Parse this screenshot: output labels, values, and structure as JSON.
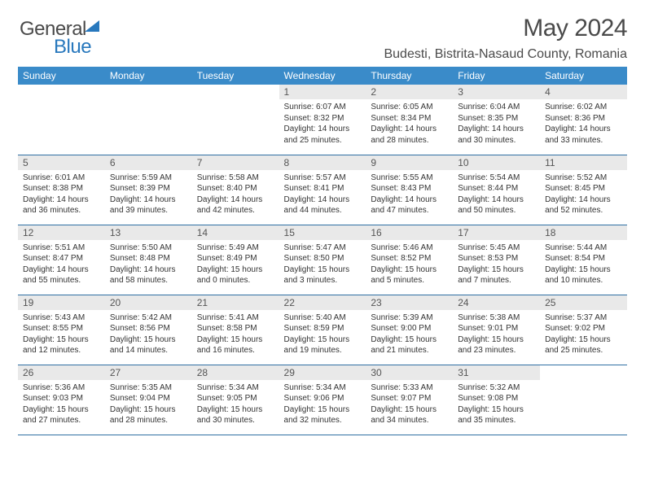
{
  "brand": {
    "part1": "General",
    "part2": "Blue"
  },
  "title": "May 2024",
  "location": "Budesti, Bistrita-Nasaud County, Romania",
  "header_color": "#3a8bc9",
  "daynum_bg": "#e9e9e9",
  "border_color": "#2f6fa3",
  "weekdays": [
    "Sunday",
    "Monday",
    "Tuesday",
    "Wednesday",
    "Thursday",
    "Friday",
    "Saturday"
  ],
  "weeks": [
    [
      null,
      null,
      null,
      {
        "n": "1",
        "sr": "6:07 AM",
        "ss": "8:32 PM",
        "dl": "14 hours and 25 minutes."
      },
      {
        "n": "2",
        "sr": "6:05 AM",
        "ss": "8:34 PM",
        "dl": "14 hours and 28 minutes."
      },
      {
        "n": "3",
        "sr": "6:04 AM",
        "ss": "8:35 PM",
        "dl": "14 hours and 30 minutes."
      },
      {
        "n": "4",
        "sr": "6:02 AM",
        "ss": "8:36 PM",
        "dl": "14 hours and 33 minutes."
      }
    ],
    [
      {
        "n": "5",
        "sr": "6:01 AM",
        "ss": "8:38 PM",
        "dl": "14 hours and 36 minutes."
      },
      {
        "n": "6",
        "sr": "5:59 AM",
        "ss": "8:39 PM",
        "dl": "14 hours and 39 minutes."
      },
      {
        "n": "7",
        "sr": "5:58 AM",
        "ss": "8:40 PM",
        "dl": "14 hours and 42 minutes."
      },
      {
        "n": "8",
        "sr": "5:57 AM",
        "ss": "8:41 PM",
        "dl": "14 hours and 44 minutes."
      },
      {
        "n": "9",
        "sr": "5:55 AM",
        "ss": "8:43 PM",
        "dl": "14 hours and 47 minutes."
      },
      {
        "n": "10",
        "sr": "5:54 AM",
        "ss": "8:44 PM",
        "dl": "14 hours and 50 minutes."
      },
      {
        "n": "11",
        "sr": "5:52 AM",
        "ss": "8:45 PM",
        "dl": "14 hours and 52 minutes."
      }
    ],
    [
      {
        "n": "12",
        "sr": "5:51 AM",
        "ss": "8:47 PM",
        "dl": "14 hours and 55 minutes."
      },
      {
        "n": "13",
        "sr": "5:50 AM",
        "ss": "8:48 PM",
        "dl": "14 hours and 58 minutes."
      },
      {
        "n": "14",
        "sr": "5:49 AM",
        "ss": "8:49 PM",
        "dl": "15 hours and 0 minutes."
      },
      {
        "n": "15",
        "sr": "5:47 AM",
        "ss": "8:50 PM",
        "dl": "15 hours and 3 minutes."
      },
      {
        "n": "16",
        "sr": "5:46 AM",
        "ss": "8:52 PM",
        "dl": "15 hours and 5 minutes."
      },
      {
        "n": "17",
        "sr": "5:45 AM",
        "ss": "8:53 PM",
        "dl": "15 hours and 7 minutes."
      },
      {
        "n": "18",
        "sr": "5:44 AM",
        "ss": "8:54 PM",
        "dl": "15 hours and 10 minutes."
      }
    ],
    [
      {
        "n": "19",
        "sr": "5:43 AM",
        "ss": "8:55 PM",
        "dl": "15 hours and 12 minutes."
      },
      {
        "n": "20",
        "sr": "5:42 AM",
        "ss": "8:56 PM",
        "dl": "15 hours and 14 minutes."
      },
      {
        "n": "21",
        "sr": "5:41 AM",
        "ss": "8:58 PM",
        "dl": "15 hours and 16 minutes."
      },
      {
        "n": "22",
        "sr": "5:40 AM",
        "ss": "8:59 PM",
        "dl": "15 hours and 19 minutes."
      },
      {
        "n": "23",
        "sr": "5:39 AM",
        "ss": "9:00 PM",
        "dl": "15 hours and 21 minutes."
      },
      {
        "n": "24",
        "sr": "5:38 AM",
        "ss": "9:01 PM",
        "dl": "15 hours and 23 minutes."
      },
      {
        "n": "25",
        "sr": "5:37 AM",
        "ss": "9:02 PM",
        "dl": "15 hours and 25 minutes."
      }
    ],
    [
      {
        "n": "26",
        "sr": "5:36 AM",
        "ss": "9:03 PM",
        "dl": "15 hours and 27 minutes."
      },
      {
        "n": "27",
        "sr": "5:35 AM",
        "ss": "9:04 PM",
        "dl": "15 hours and 28 minutes."
      },
      {
        "n": "28",
        "sr": "5:34 AM",
        "ss": "9:05 PM",
        "dl": "15 hours and 30 minutes."
      },
      {
        "n": "29",
        "sr": "5:34 AM",
        "ss": "9:06 PM",
        "dl": "15 hours and 32 minutes."
      },
      {
        "n": "30",
        "sr": "5:33 AM",
        "ss": "9:07 PM",
        "dl": "15 hours and 34 minutes."
      },
      {
        "n": "31",
        "sr": "5:32 AM",
        "ss": "9:08 PM",
        "dl": "15 hours and 35 minutes."
      },
      null
    ]
  ],
  "labels": {
    "sunrise": "Sunrise:",
    "sunset": "Sunset:",
    "daylight": "Daylight:"
  }
}
